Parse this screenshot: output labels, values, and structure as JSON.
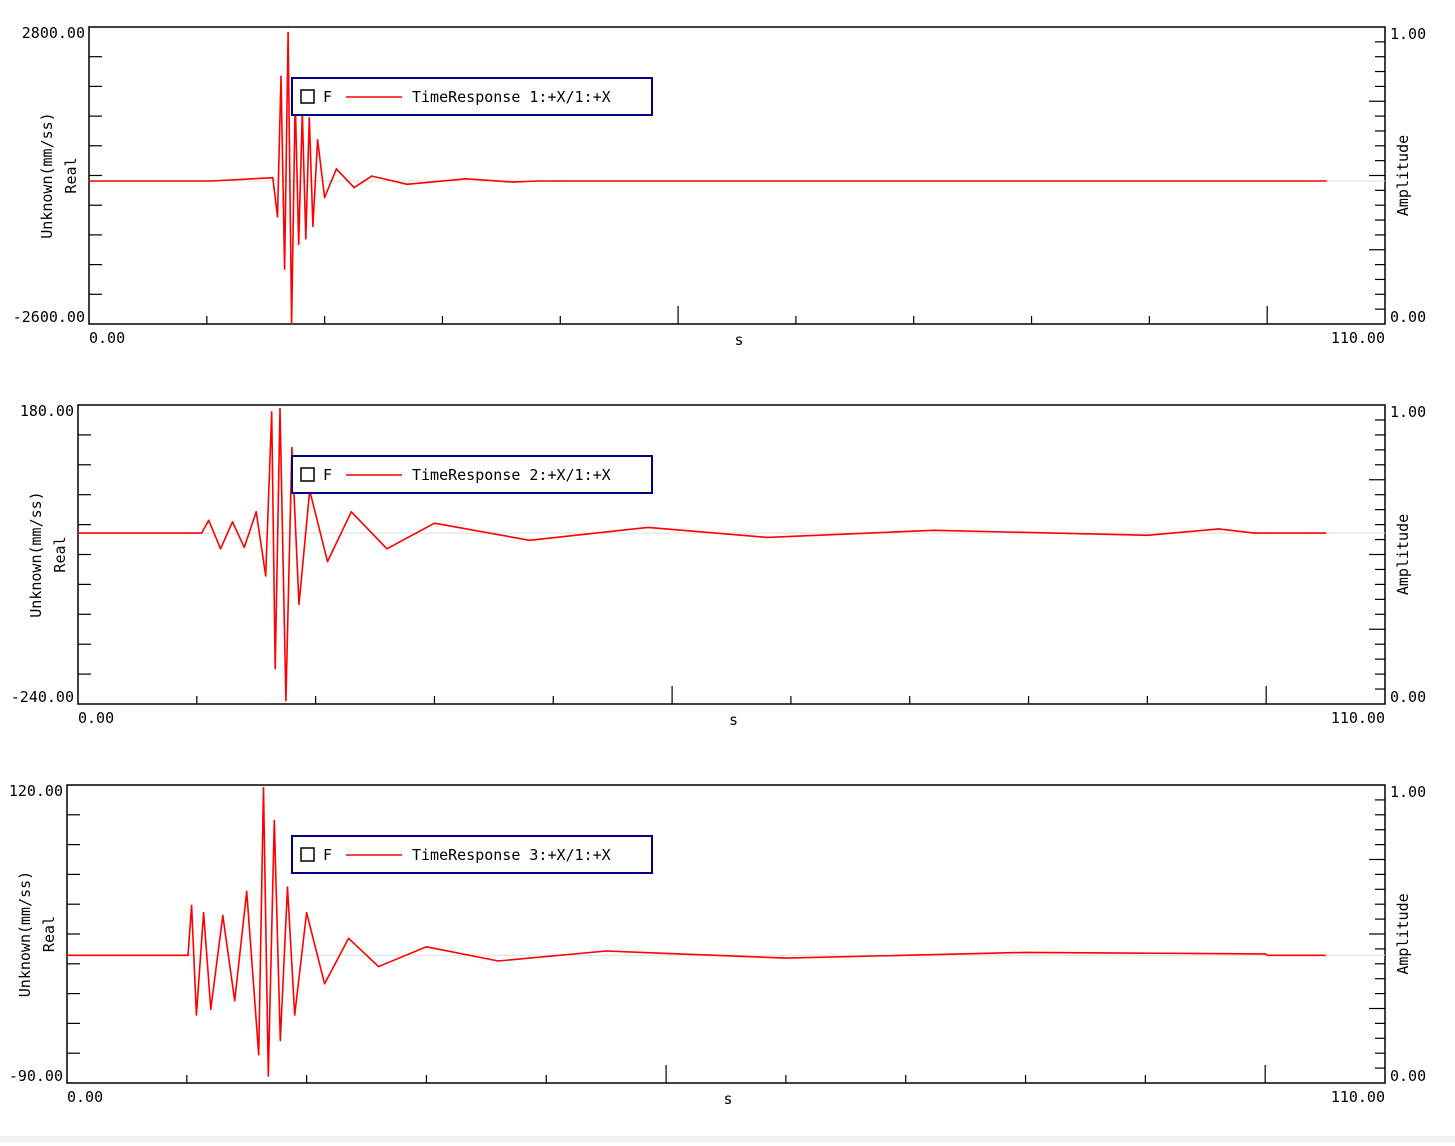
{
  "colors": {
    "trace": "#ff0000",
    "axis": "#000000",
    "legend_border": "#000080",
    "background": "#ffffff"
  },
  "chart_data": [
    {
      "type": "line",
      "id": "panel-1",
      "ylim": [
        -2600.0,
        2800.0
      ],
      "xlim": [
        0.0,
        110.0
      ],
      "y_tick_labels": [
        "2800.00",
        "-2600.00"
      ],
      "x_tick_labels": [
        "0.00",
        "110.00"
      ],
      "xlabel": "s",
      "ylabel": "Unknown(mm/ss)",
      "ylabel2": "Real",
      "right_axis_label": "Amplitude",
      "right_ylim": [
        0.0,
        1.0
      ],
      "right_tick_labels": [
        "1.00",
        "0.00"
      ],
      "grid": false,
      "legend_position": "top-left",
      "legend": {
        "checkbox_label": "F",
        "series_label": "TimeResponse 1:+X/1:+X"
      },
      "series": [
        {
          "name": "TimeResponse 1:+X/1:+X",
          "x": [
            0,
            10.4,
            15.6,
            16.0,
            16.3,
            16.6,
            16.9,
            17.2,
            17.5,
            17.8,
            18.1,
            18.4,
            18.7,
            19.0,
            19.4,
            20.0,
            21.0,
            22.5,
            24.0,
            27.0,
            32.0,
            36.0,
            38.0,
            40.0,
            105.0
          ],
          "y": [
            0,
            0,
            60,
            -650,
            1900,
            -1600,
            2700,
            -2600,
            1500,
            -1150,
            1250,
            -1050,
            1150,
            -820,
            750,
            -300,
            220,
            -120,
            90,
            -60,
            40,
            -20,
            0,
            0,
            0
          ]
        }
      ]
    },
    {
      "type": "line",
      "id": "panel-2",
      "ylim": [
        -240.0,
        180.0
      ],
      "xlim": [
        0.0,
        110.0
      ],
      "y_tick_labels": [
        "180.00",
        "-240.00"
      ],
      "x_tick_labels": [
        "0.00",
        "110.00"
      ],
      "xlabel": "s",
      "ylabel": "Unknown(mm/ss)",
      "ylabel2": "Real",
      "right_axis_label": "Amplitude",
      "right_ylim": [
        0.0,
        1.0
      ],
      "right_tick_labels": [
        "1.00",
        "0.00"
      ],
      "grid": false,
      "legend_position": "top-left",
      "legend": {
        "checkbox_label": "F",
        "series_label": "TimeResponse 2:+X/1:+X"
      },
      "series": [
        {
          "name": "TimeResponse 2:+X/1:+X",
          "x": [
            0,
            10.4,
            11.0,
            12.0,
            13.0,
            14.0,
            15.0,
            15.8,
            16.3,
            16.6,
            17.0,
            17.5,
            18.0,
            18.6,
            19.5,
            21.0,
            23.0,
            26.0,
            30.0,
            38.0,
            48.0,
            58.0,
            72.0,
            90.0,
            96.0,
            99.0,
            105.0
          ],
          "y": [
            0,
            0,
            18,
            -22,
            16,
            -20,
            30,
            -60,
            170,
            -190,
            175,
            -235,
            120,
            -100,
            60,
            -40,
            30,
            -22,
            14,
            -10,
            8,
            -6,
            4,
            -3,
            6,
            0,
            0
          ]
        }
      ]
    },
    {
      "type": "line",
      "id": "panel-3",
      "ylim": [
        -90.0,
        120.0
      ],
      "xlim": [
        0.0,
        110.0
      ],
      "y_tick_labels": [
        "120.00",
        "-90.00"
      ],
      "x_tick_labels": [
        "0.00",
        "110.00"
      ],
      "xlabel": "s",
      "ylabel": "Unknown(mm/ss)",
      "ylabel2": "Real",
      "right_axis_label": "Amplitude",
      "right_ylim": [
        0.0,
        1.0
      ],
      "right_tick_labels": [
        "1.00",
        "0.00"
      ],
      "grid": false,
      "legend_position": "top-left",
      "legend": {
        "checkbox_label": "F",
        "series_label": "TimeResponse 3:+X/1:+X"
      },
      "series": [
        {
          "name": "TimeResponse 3:+X/1:+X",
          "x": [
            0,
            10.1,
            10.4,
            10.8,
            11.4,
            12.0,
            13.0,
            14.0,
            15.0,
            16.0,
            16.4,
            16.8,
            17.3,
            17.8,
            18.4,
            19.0,
            20.0,
            21.5,
            23.5,
            26.0,
            30.0,
            36.0,
            45.0,
            60.0,
            80.0,
            100.0,
            100.2,
            105.0
          ],
          "y": [
            0,
            0,
            35,
            -42,
            30,
            -38,
            28,
            -32,
            45,
            -70,
            118,
            -85,
            95,
            -60,
            48,
            -42,
            30,
            -20,
            12,
            -8,
            6,
            -4,
            3,
            -2,
            2,
            1,
            0,
            0
          ]
        }
      ]
    }
  ]
}
